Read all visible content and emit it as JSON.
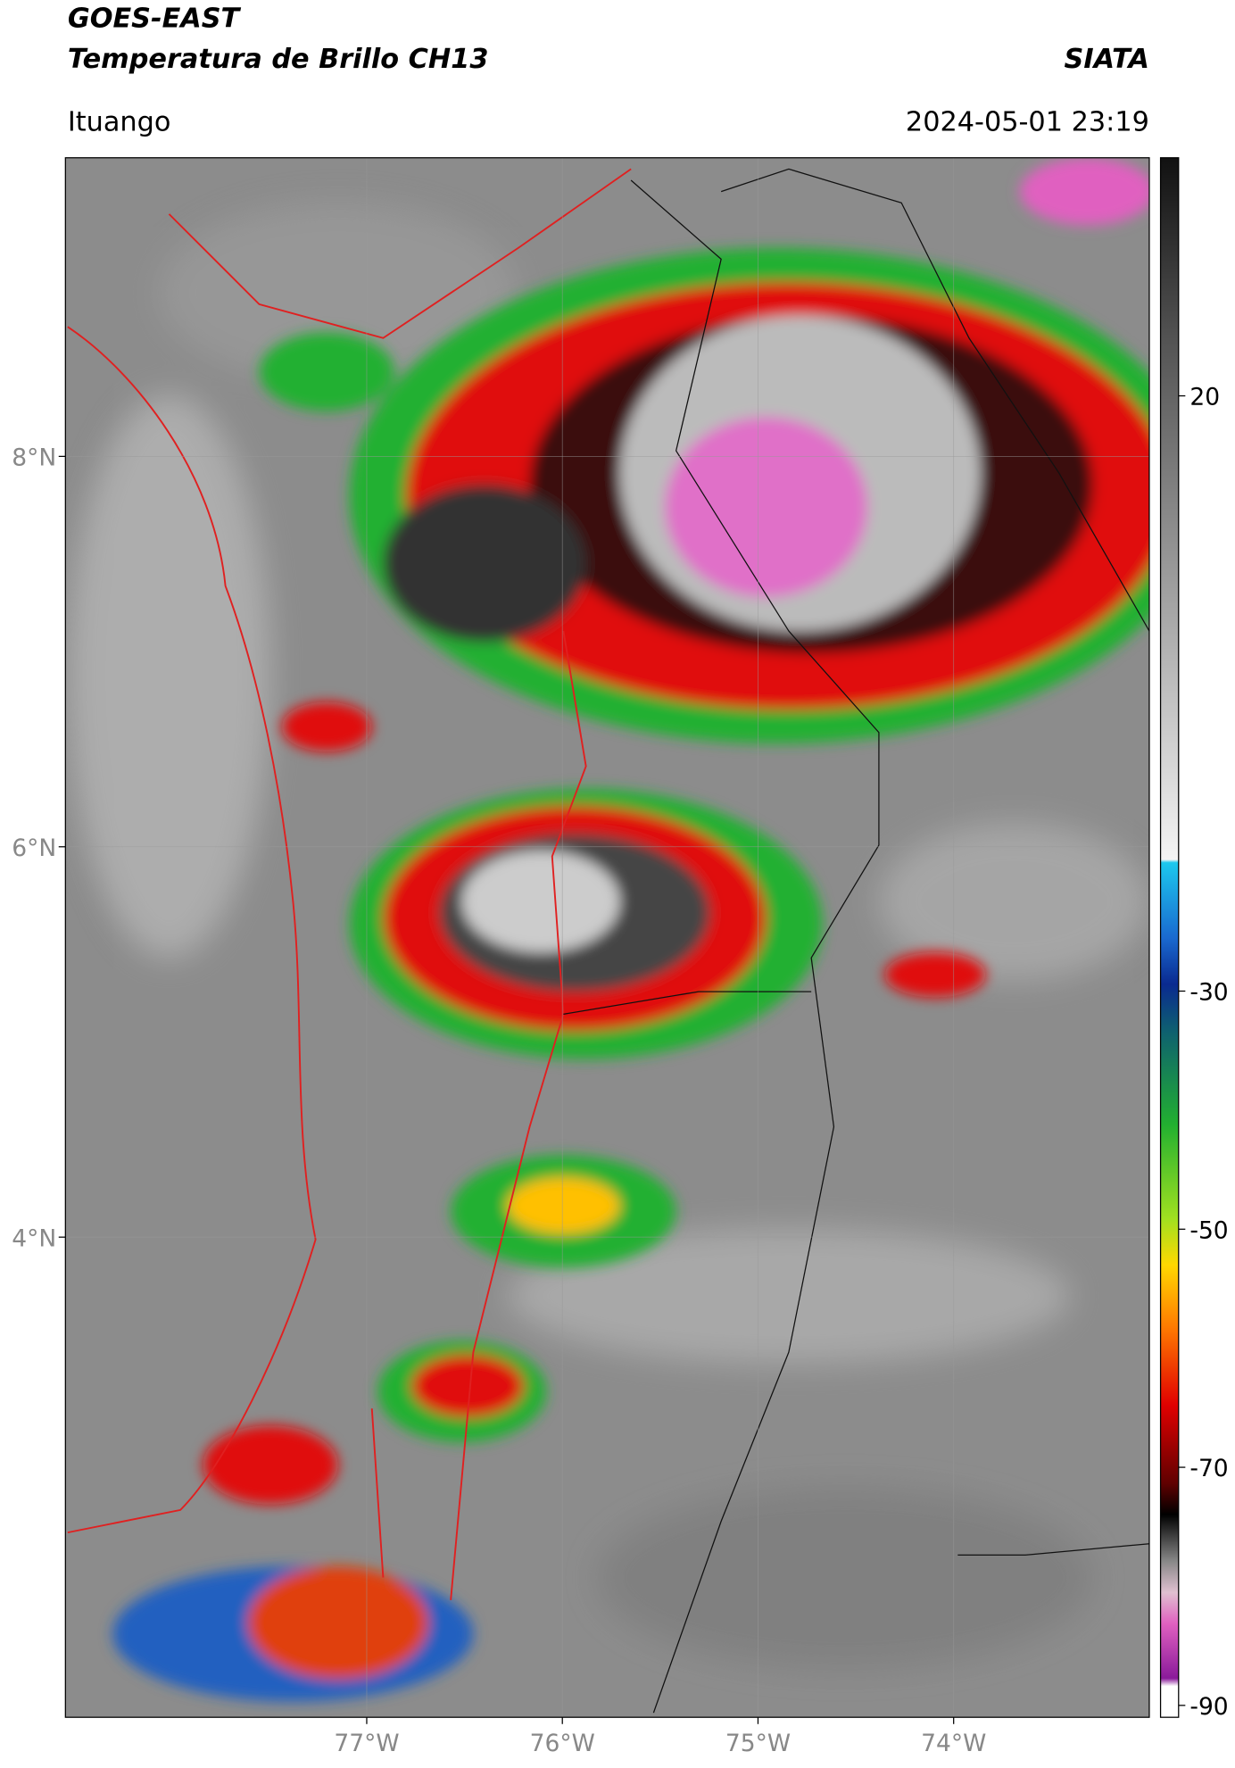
{
  "header": {
    "satellite": "GOES-EAST",
    "product": "Temperatura de Brillo CH13",
    "source": "SIATA",
    "location": "Ituango",
    "datetime": "2024-05-01 23:19"
  },
  "map": {
    "lonlim": [
      -78.54,
      -73.0
    ],
    "latlim": [
      1.54,
      9.53
    ],
    "lat_ticks": [
      {
        "value": 8,
        "label": "8°N"
      },
      {
        "value": 6,
        "label": "6°N"
      },
      {
        "value": 4,
        "label": "4°N"
      }
    ],
    "lon_ticks": [
      {
        "value": -77,
        "label": "77°W"
      },
      {
        "value": -76,
        "label": "76°W"
      },
      {
        "value": -75,
        "label": "75°W"
      },
      {
        "value": -74,
        "label": "74°W"
      }
    ]
  },
  "colorbar": {
    "range": [
      -91,
      40
    ],
    "ticks": [
      20,
      -30,
      -50,
      -70,
      -90
    ]
  }
}
